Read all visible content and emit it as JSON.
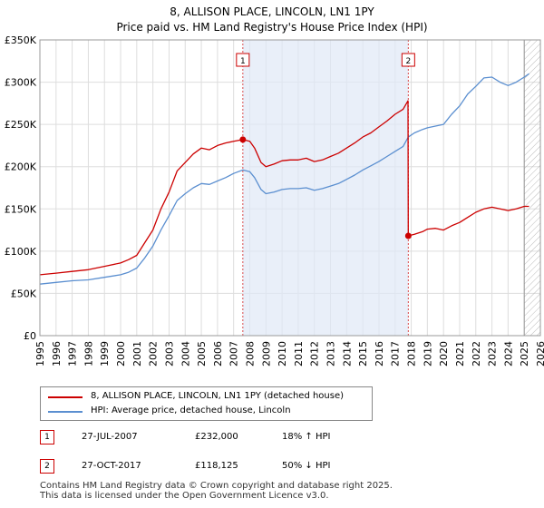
{
  "title": {
    "line1": "8, ALLISON PLACE, LINCOLN, LN1 1PY",
    "line2": "Price paid vs. HM Land Registry's House Price Index (HPI)"
  },
  "legend": {
    "items": [
      {
        "label": "8, ALLISON PLACE, LINCOLN, LN1 1PY (detached house)",
        "color": "#cc0000"
      },
      {
        "label": "HPI: Average price, detached house, Lincoln",
        "color": "#5b8fd0"
      }
    ]
  },
  "sales": [
    {
      "marker": "1",
      "date": "27-JUL-2007",
      "price": "£232,000",
      "hpi_change": "18% ↑ HPI"
    },
    {
      "marker": "2",
      "date": "27-OCT-2017",
      "price": "£118,125",
      "hpi_change": "50% ↓ HPI"
    }
  ],
  "footer": {
    "line1": "Contains HM Land Registry data © Crown copyright and database right 2025.",
    "line2": "This data is licensed under the Open Government Licence v3.0."
  },
  "chart_data": {
    "type": "line",
    "ylim": [
      0,
      350000
    ],
    "xlim": [
      1995,
      2026
    ],
    "y_ticks": [
      0,
      50000,
      100000,
      150000,
      200000,
      250000,
      300000,
      350000
    ],
    "y_tick_labels": [
      "£0",
      "£50K",
      "£100K",
      "£150K",
      "£200K",
      "£250K",
      "£300K",
      "£350K"
    ],
    "x_tick_labels": [
      "1995",
      "1996",
      "1997",
      "1998",
      "1999",
      "2000",
      "2001",
      "2002",
      "2003",
      "2004",
      "2005",
      "2006",
      "2007",
      "2008",
      "2009",
      "2010",
      "2011",
      "2012",
      "2013",
      "2014",
      "2015",
      "2016",
      "2017",
      "2018",
      "2019",
      "2020",
      "2021",
      "2022",
      "2023",
      "2024",
      "2025",
      "2026"
    ],
    "grid": true,
    "shaded_period": [
      2007.57,
      2017.82
    ],
    "hatched_after": 2025.0,
    "sale_points": [
      {
        "label": "1",
        "x": 2007.57,
        "y": 232000
      },
      {
        "label": "2",
        "x": 2017.82,
        "y": 118125
      }
    ],
    "series": [
      {
        "name": "8, ALLISON PLACE, LINCOLN, LN1 1PY (detached house)",
        "color": "#cc0000",
        "x": [
          1995.0,
          1996.0,
          1997.0,
          1998.0,
          1999.0,
          2000.0,
          2000.5,
          2001.0,
          2001.5,
          2002.0,
          2002.5,
          2003.0,
          2003.5,
          2004.0,
          2004.5,
          2005.0,
          2005.5,
          2006.0,
          2006.5,
          2007.0,
          2007.57,
          2008.0,
          2008.3,
          2008.7,
          2009.0,
          2009.5,
          2010.0,
          2010.5,
          2011.0,
          2011.5,
          2012.0,
          2012.5,
          2013.0,
          2013.5,
          2014.0,
          2014.5,
          2015.0,
          2015.5,
          2016.0,
          2016.5,
          2017.0,
          2017.5,
          2017.8,
          2017.82,
          2018.2,
          2018.7,
          2019.0,
          2019.5,
          2020.0,
          2020.5,
          2021.0,
          2021.5,
          2022.0,
          2022.5,
          2023.0,
          2023.5,
          2024.0,
          2024.5,
          2025.0,
          2025.3
        ],
        "y": [
          72000,
          74000,
          76000,
          78000,
          82000,
          86000,
          90000,
          95000,
          110000,
          125000,
          150000,
          170000,
          195000,
          205000,
          215000,
          222000,
          220000,
          225000,
          228000,
          230000,
          232000,
          230000,
          222000,
          205000,
          200000,
          203000,
          207000,
          208000,
          208000,
          210000,
          206000,
          208000,
          212000,
          216000,
          222000,
          228000,
          235000,
          240000,
          247000,
          254000,
          262000,
          268000,
          278000,
          118125,
          120000,
          123000,
          126000,
          127000,
          125000,
          130000,
          134000,
          140000,
          146000,
          150000,
          152000,
          150000,
          148000,
          150000,
          153000,
          153000
        ]
      },
      {
        "name": "HPI: Average price, detached house, Lincoln",
        "color": "#5b8fd0",
        "x": [
          1995.0,
          1996.0,
          1997.0,
          1998.0,
          1999.0,
          2000.0,
          2000.5,
          2001.0,
          2001.5,
          2002.0,
          2002.5,
          2003.0,
          2003.5,
          2004.0,
          2004.5,
          2005.0,
          2005.5,
          2006.0,
          2006.5,
          2007.0,
          2007.57,
          2008.0,
          2008.3,
          2008.7,
          2009.0,
          2009.5,
          2010.0,
          2010.5,
          2011.0,
          2011.5,
          2012.0,
          2012.5,
          2013.0,
          2013.5,
          2014.0,
          2014.5,
          2015.0,
          2015.5,
          2016.0,
          2016.5,
          2017.0,
          2017.5,
          2017.82,
          2018.2,
          2018.7,
          2019.0,
          2019.5,
          2020.0,
          2020.5,
          2021.0,
          2021.5,
          2022.0,
          2022.5,
          2023.0,
          2023.5,
          2024.0,
          2024.5,
          2025.0,
          2025.3
        ],
        "y": [
          61000,
          63000,
          65000,
          66000,
          69000,
          72000,
          75000,
          80000,
          92000,
          106000,
          125000,
          142000,
          160000,
          168000,
          175000,
          180000,
          179000,
          183000,
          187000,
          192000,
          196000,
          194000,
          187000,
          173000,
          168000,
          170000,
          173000,
          174000,
          174000,
          175000,
          172000,
          174000,
          177000,
          180000,
          185000,
          190000,
          196000,
          201000,
          206000,
          212000,
          218000,
          224000,
          235000,
          240000,
          244000,
          246000,
          248000,
          250000,
          262000,
          272000,
          286000,
          295000,
          305000,
          306000,
          300000,
          296000,
          300000,
          306000,
          310000
        ]
      }
    ]
  }
}
